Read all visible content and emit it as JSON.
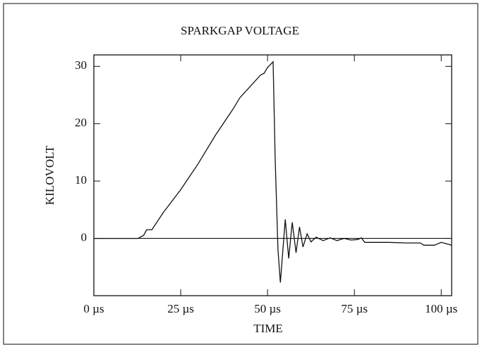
{
  "chart_data": {
    "type": "line",
    "title": "SPARKGAP VOLTAGE",
    "x_label": "TIME",
    "y_label": "KILOVOLT",
    "x": [
      0,
      12.7,
      14.3,
      15.2,
      16.7,
      20,
      25,
      30,
      35,
      40,
      42,
      45,
      48,
      49,
      50,
      51.6,
      52.2,
      53.0,
      53.7,
      55.1,
      56.1,
      57.1,
      58.2,
      59.2,
      60.2,
      61.4,
      62.5,
      64,
      66,
      68,
      70,
      72,
      74,
      76,
      77,
      78,
      85,
      90,
      94,
      95,
      98,
      100,
      103
    ],
    "series": [
      {
        "name": "Sparkgap voltage",
        "color": "#111111",
        "values": [
          0,
          0,
          0.5,
          1.5,
          1.5,
          4.5,
          8.5,
          13,
          18,
          22.5,
          24.5,
          26.5,
          28.5,
          28.8,
          29.8,
          30.8,
          14,
          -2,
          -7.7,
          3.3,
          -3.5,
          2.8,
          -2.5,
          2.0,
          -1.5,
          0.8,
          -0.6,
          0.2,
          -0.4,
          0.1,
          -0.4,
          0,
          -0.3,
          -0.2,
          0.1,
          -0.7,
          -0.7,
          -0.8,
          -0.8,
          -1.2,
          -1.2,
          -0.7,
          -1.2
        ]
      }
    ],
    "zero_line": 0,
    "xlim": [
      0,
      103
    ],
    "xticks": [
      {
        "value": 0,
        "label": "0 µs"
      },
      {
        "value": 25,
        "label": "25 µs"
      },
      {
        "value": 50,
        "label": "50 µs"
      },
      {
        "value": 75,
        "label": "75 µs"
      },
      {
        "value": 100,
        "label": "100 µs"
      }
    ],
    "ylim": [
      -10,
      32
    ],
    "yticks": [
      0,
      10,
      20,
      30
    ]
  }
}
